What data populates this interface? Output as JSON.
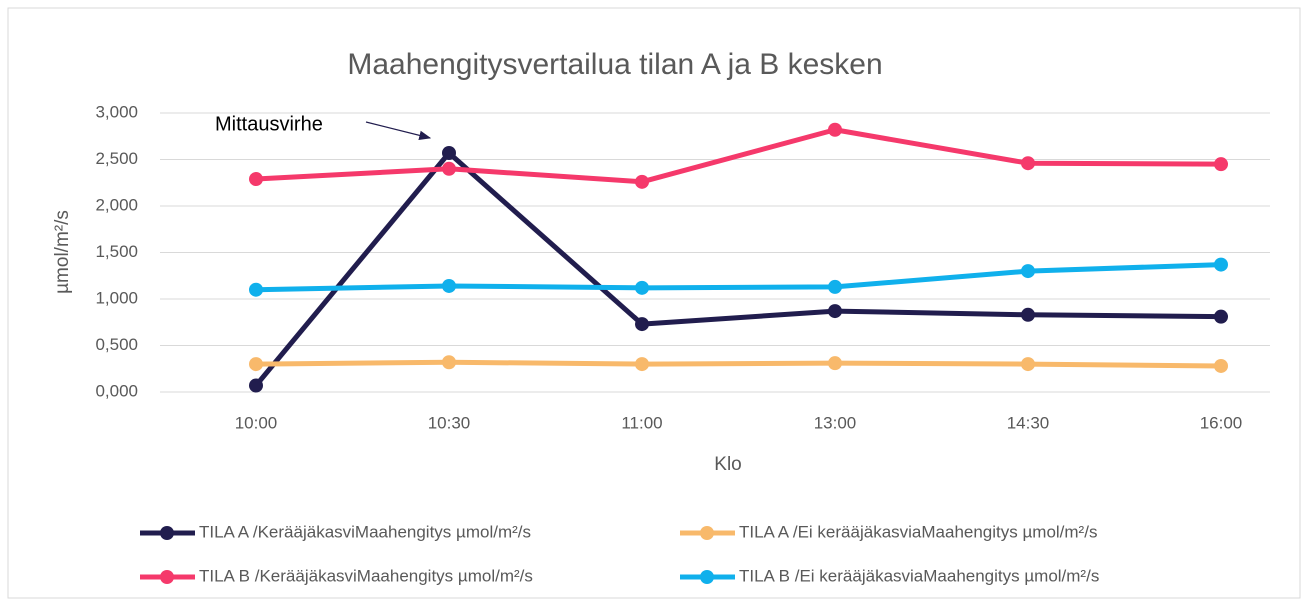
{
  "chart_data": {
    "type": "line",
    "title": "Maahengitysvertailua tilan A ja B kesken",
    "xlabel": "Klo",
    "ylabel": "µmol/m²/s",
    "annotation": "Mittausvirhe",
    "categories": [
      "10:00",
      "10:30",
      "11:00",
      "13:00",
      "14:30",
      "16:00"
    ],
    "series": [
      {
        "name": "TILA A /KerääjäkasviMaahengitys µmol/m²/s",
        "color": "#211d4e",
        "values": [
          0.07,
          2.57,
          0.73,
          0.87,
          0.83,
          0.81
        ]
      },
      {
        "name": "TILA A /Ei kerääjäkasviaMaahengitys µmol/m²/s",
        "color": "#f8b96b",
        "values": [
          0.3,
          0.32,
          0.3,
          0.31,
          0.3,
          0.28
        ]
      },
      {
        "name": "TILA B /KerääjäkasviMaahengitys µmol/m²/s",
        "color": "#f5396b",
        "values": [
          2.29,
          2.4,
          2.26,
          2.82,
          2.46,
          2.45
        ]
      },
      {
        "name": "TILA B /Ei kerääjäkasviaMaahengitys µmol/m²/s",
        "color": "#10b0ec",
        "values": [
          1.1,
          1.14,
          1.12,
          1.13,
          1.3,
          1.37
        ]
      }
    ],
    "ylim": [
      0,
      3
    ],
    "yticks": [
      {
        "value": 0,
        "label": "0,000"
      },
      {
        "value": 0.5,
        "label": "0,500"
      },
      {
        "value": 1,
        "label": "1,000"
      },
      {
        "value": 1.5,
        "label": "1,500"
      },
      {
        "value": 2,
        "label": "2,000"
      },
      {
        "value": 2.5,
        "label": "2,500"
      },
      {
        "value": 3,
        "label": "3,000"
      }
    ],
    "grid": true,
    "legend": "bottom"
  }
}
